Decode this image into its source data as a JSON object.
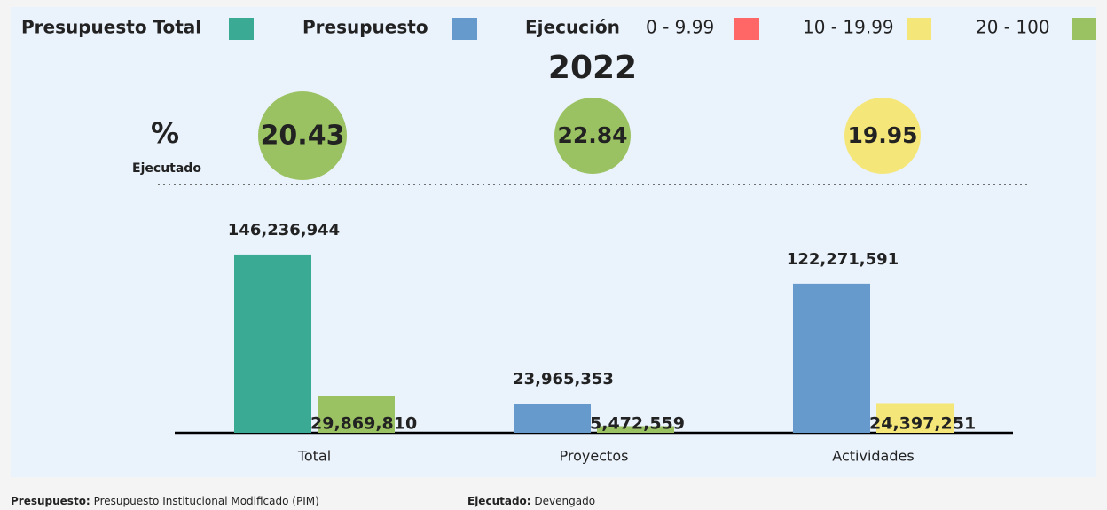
{
  "chart_data": {
    "type": "bar",
    "title": "2022",
    "legend": {
      "items": [
        {
          "name": "Presupuesto Total",
          "color": "#3aaa94"
        },
        {
          "name": "Presupuesto",
          "color": "#6699cc"
        }
      ],
      "execution_label": "Ejecución",
      "ranges": [
        {
          "name": "0 - 9.99",
          "color": "#ff6666"
        },
        {
          "name": "10 - 19.99",
          "color": "#f5e67a"
        },
        {
          "name": "20 - 100",
          "color": "#9bc262"
        }
      ]
    },
    "percent_label": "%",
    "percent_sublabel": "Ejecutado",
    "percent_executed": [
      20.43,
      22.84,
      19.95
    ],
    "percent_colors": [
      "#9bc262",
      "#9bc262",
      "#f5e67a"
    ],
    "categories": [
      "Total",
      "Proyectos",
      "Actividades"
    ],
    "series": [
      {
        "colors": [
          "#3aaa94",
          "#6699cc",
          "#6699cc"
        ],
        "values": [
          146236944,
          23965353,
          122271591
        ],
        "value_labels": [
          "146,236,944",
          "23,965,353",
          "122,271,591"
        ]
      },
      {
        "colors": [
          "#9bc262",
          "#9bc262",
          "#f5e67a"
        ],
        "values": [
          29869810,
          5472559,
          24397251
        ],
        "value_labels": [
          "29,869,810",
          "5,472,559",
          "24,397,251"
        ]
      }
    ],
    "ylim": [
      0,
      200000000
    ]
  },
  "footer": [
    {
      "term": "Presupuesto:",
      "text": "Presupuesto Institucional Modificado (PIM)"
    },
    {
      "term": "Ejecutado:",
      "text": "Devengado"
    }
  ]
}
